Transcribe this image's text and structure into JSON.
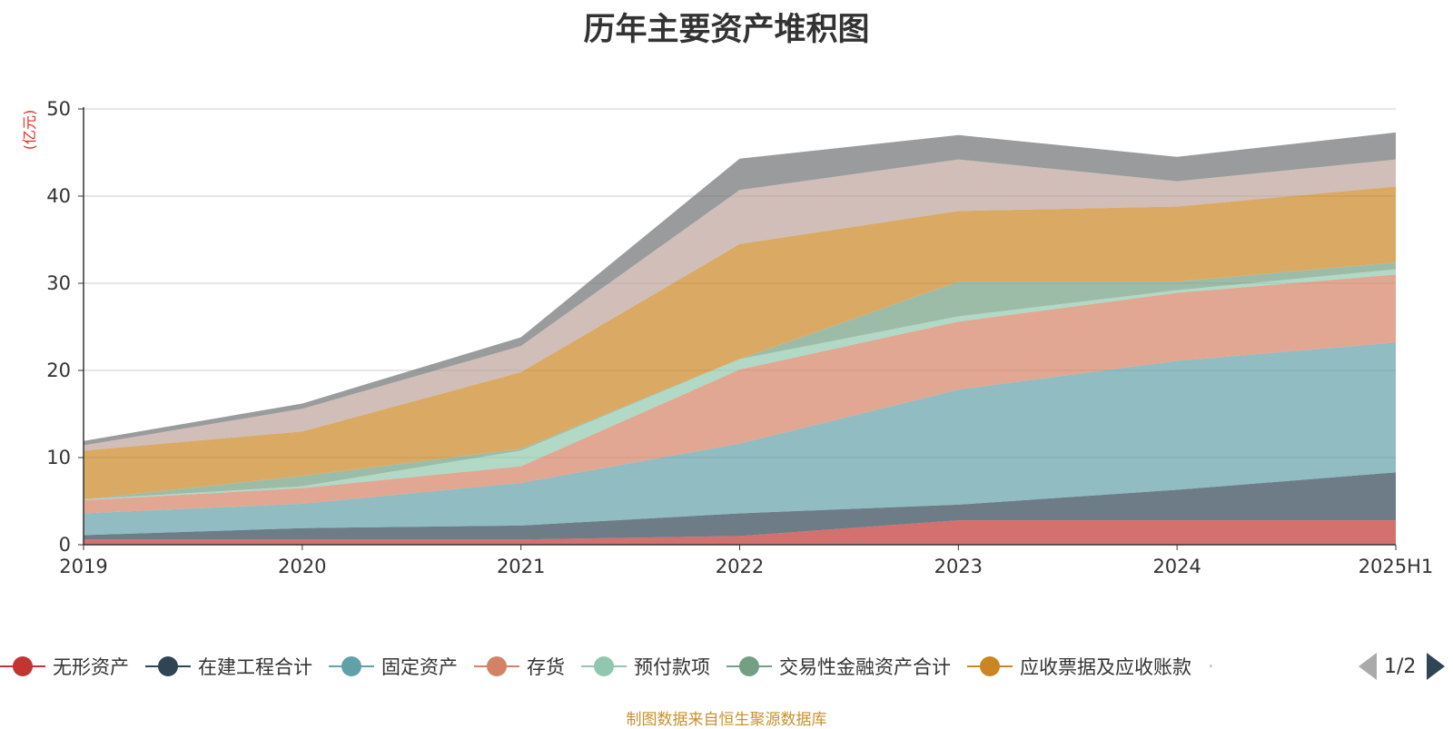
{
  "title": "历年主要资产堆积图",
  "unit": "(亿元)",
  "source_note": "制图数据来自恒生聚源数据库",
  "pager": {
    "text": "1/2"
  },
  "chart_data": {
    "type": "area",
    "stacked": true,
    "title": "历年主要资产堆积图",
    "ylabel": "(亿元)",
    "ylim": [
      0,
      50
    ],
    "yticks": [
      0,
      10,
      20,
      30,
      40,
      50
    ],
    "grid": true,
    "legend_position": "bottom",
    "categories": [
      "2019",
      "2020",
      "2021",
      "2022",
      "2023",
      "2024",
      "2025H1"
    ],
    "series": [
      {
        "name": "无形资产",
        "color": "#c23531",
        "values": [
          0.6,
          0.6,
          0.6,
          1.0,
          2.8,
          2.8,
          2.8
        ]
      },
      {
        "name": "在建工程合计",
        "color": "#2f4554",
        "values": [
          0.5,
          1.3,
          1.6,
          2.6,
          1.8,
          3.5,
          5.5
        ]
      },
      {
        "name": "固定资产",
        "color": "#61a0a8",
        "values": [
          2.5,
          2.8,
          4.9,
          8.0,
          13.2,
          14.8,
          14.9
        ]
      },
      {
        "name": "存货",
        "color": "#d48265",
        "values": [
          1.5,
          1.8,
          1.9,
          8.5,
          7.8,
          7.8,
          7.8
        ]
      },
      {
        "name": "预付款项",
        "color": "#91c7ae",
        "values": [
          0.1,
          0.2,
          1.8,
          1.2,
          0.6,
          0.3,
          0.6
        ]
      },
      {
        "name": "交易性金融资产合计",
        "color": "#749f83",
        "values": [
          0.0,
          1.2,
          0.2,
          0.0,
          4.0,
          1.0,
          0.8
        ]
      },
      {
        "name": "应收票据及应收账款",
        "color": "#ca8622",
        "values": [
          5.6,
          5.1,
          8.8,
          13.2,
          8.1,
          8.6,
          8.7
        ]
      },
      {
        "name": "",
        "color": "#bda29a",
        "values": [
          0.6,
          2.6,
          3.0,
          6.2,
          5.9,
          2.9,
          3.1
        ]
      },
      {
        "name": "",
        "color": "#6e7074",
        "values": [
          0.5,
          0.6,
          1.0,
          3.6,
          2.8,
          2.8,
          3.1
        ]
      }
    ]
  }
}
